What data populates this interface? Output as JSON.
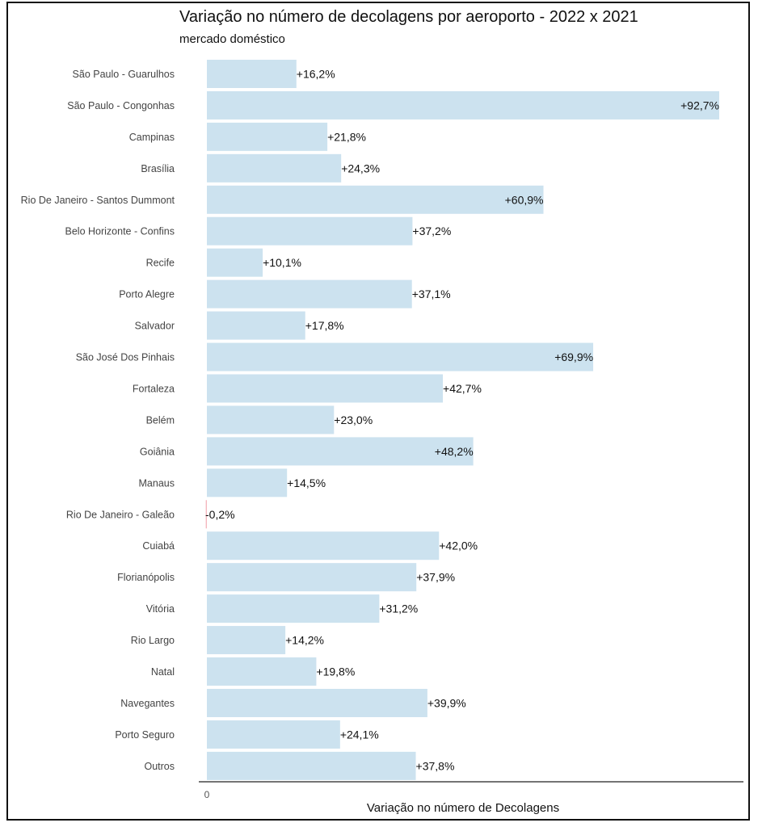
{
  "chart_data": {
    "type": "bar",
    "orientation": "horizontal",
    "title": "Variação no número de decolagens por aeroporto - 2022 x 2021",
    "subtitle": "mercado doméstico",
    "xlabel": "Variação no número de Decolagens",
    "ylabel": "",
    "xlim": [
      0,
      92.7
    ],
    "x_ticks": [
      "0"
    ],
    "grid": false,
    "legend": "none",
    "colors": {
      "positive": "#cce2ef",
      "negative": "#f4b6bd",
      "axis": "#222222",
      "text": "#111111"
    },
    "categories": [
      "São Paulo - Guarulhos",
      "São Paulo - Congonhas",
      "Campinas",
      "Brasília",
      "Rio De Janeiro - Santos Dummont",
      "Belo Horizonte - Confins",
      "Recife",
      "Porto Alegre",
      "Salvador",
      "São José Dos Pinhais",
      "Fortaleza",
      "Belém",
      "Goiânia",
      "Manaus",
      "Rio De Janeiro - Galeão",
      "Cuiabá",
      "Florianópolis",
      "Vitória",
      "Rio Largo",
      "Natal",
      "Navegantes",
      "Porto Seguro",
      "Outros"
    ],
    "values": [
      16.2,
      92.7,
      21.8,
      24.3,
      60.9,
      37.2,
      10.1,
      37.1,
      17.8,
      69.9,
      42.7,
      23.0,
      48.2,
      14.5,
      -0.2,
      42.0,
      37.9,
      31.2,
      14.2,
      19.8,
      39.9,
      24.1,
      37.8
    ],
    "value_labels": [
      "+16,2%",
      "+92,7%",
      "+21,8%",
      "+24,3%",
      "+60,9%",
      "+37,2%",
      "+10,1%",
      "+37,1%",
      "+17,8%",
      "+69,9%",
      "+42,7%",
      "+23,0%",
      "+48,2%",
      "+14,5%",
      "-0,2%",
      "+42,0%",
      "+37,9%",
      "+31,2%",
      "+14,2%",
      "+19,8%",
      "+39,9%",
      "+24,1%",
      "+37,8%"
    ]
  }
}
